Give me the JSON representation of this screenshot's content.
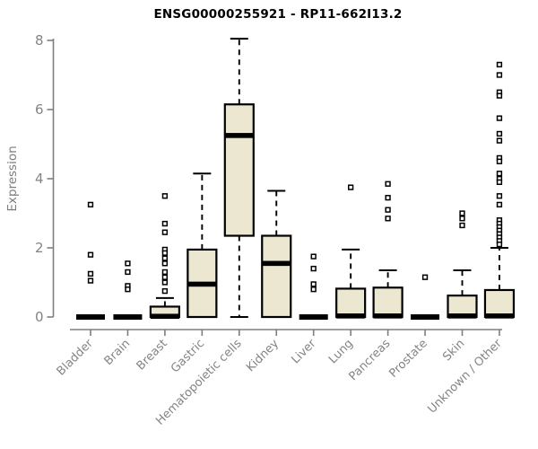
{
  "title": "ENSG00000255921 - RP11-662I13.2",
  "colors": {
    "box_fill": "#ece7d1",
    "box_border": "#000000",
    "median": "#000000",
    "whisker": "#000000",
    "outlier_stroke": "#000000",
    "outlier_fill": "#ffffff",
    "axis": "#7e7e7e",
    "tick_label": "#848484",
    "title_color": "#000000"
  },
  "chart_data": {
    "type": "boxplot",
    "title": "ENSG00000255921 - RP11-662I13.2",
    "xlabel": "",
    "ylabel": "Expression",
    "ylim": [
      0,
      8
    ],
    "yticks": [
      0,
      2,
      4,
      6,
      8
    ],
    "grid": "off",
    "legend": "none",
    "categories": [
      "Bladder",
      "Brain",
      "Breast",
      "Gastric",
      "Hematopoietic cells",
      "Kidney",
      "Liver",
      "Lung",
      "Pancreas",
      "Prostate",
      "Skin",
      "Unknown / Other"
    ],
    "boxes": [
      {
        "category": "Bladder",
        "q1": 0,
        "median": 0,
        "q3": 0,
        "whisker_low": null,
        "whisker_high": null,
        "outliers": [
          3.25,
          1.8,
          1.25,
          1.05
        ]
      },
      {
        "category": "Brain",
        "q1": 0,
        "median": 0,
        "q3": 0,
        "whisker_low": null,
        "whisker_high": null,
        "outliers": [
          1.55,
          1.3,
          0.9,
          0.8
        ]
      },
      {
        "category": "Breast",
        "q1": 0,
        "median": 0.02,
        "q3": 0.3,
        "whisker_low": null,
        "whisker_high": 0.55,
        "outliers": [
          3.5,
          2.7,
          2.45,
          1.95,
          1.85,
          1.7,
          1.55,
          1.3,
          1.15,
          1.0,
          0.75
        ]
      },
      {
        "category": "Gastric",
        "q1": 0,
        "median": 0.95,
        "q3": 1.95,
        "whisker_low": null,
        "whisker_high": 4.15,
        "outliers": []
      },
      {
        "category": "Hematopoietic cells",
        "q1": 2.35,
        "median": 5.25,
        "q3": 6.15,
        "whisker_low": 0,
        "whisker_high": 8.05,
        "outliers": []
      },
      {
        "category": "Kidney",
        "q1": 0,
        "median": 1.55,
        "q3": 2.35,
        "whisker_low": null,
        "whisker_high": 3.65,
        "outliers": []
      },
      {
        "category": "Liver",
        "q1": 0,
        "median": 0,
        "q3": 0,
        "whisker_low": null,
        "whisker_high": null,
        "outliers": [
          1.75,
          1.4,
          0.95,
          0.8
        ]
      },
      {
        "category": "Lung",
        "q1": 0,
        "median": 0.03,
        "q3": 0.82,
        "whisker_low": null,
        "whisker_high": 1.95,
        "outliers": [
          3.75
        ]
      },
      {
        "category": "Pancreas",
        "q1": 0,
        "median": 0.03,
        "q3": 0.85,
        "whisker_low": null,
        "whisker_high": 1.35,
        "outliers": [
          3.85,
          3.45,
          3.1,
          2.85
        ]
      },
      {
        "category": "Prostate",
        "q1": 0,
        "median": 0,
        "q3": 0,
        "whisker_low": null,
        "whisker_high": null,
        "outliers": [
          1.15
        ]
      },
      {
        "category": "Skin",
        "q1": 0,
        "median": 0.03,
        "q3": 0.62,
        "whisker_low": null,
        "whisker_high": 1.35,
        "outliers": [
          3.0,
          2.85,
          2.65
        ]
      },
      {
        "category": "Unknown / Other",
        "q1": 0,
        "median": 0.03,
        "q3": 0.78,
        "whisker_low": null,
        "whisker_high": 2.0,
        "outliers": [
          7.3,
          7.0,
          6.5,
          6.4,
          5.75,
          5.3,
          5.1,
          4.6,
          4.5,
          4.15,
          4.0,
          3.9,
          3.5,
          3.25,
          2.8,
          2.7,
          2.6,
          2.5,
          2.4,
          2.3,
          2.2,
          2.1
        ]
      }
    ]
  }
}
